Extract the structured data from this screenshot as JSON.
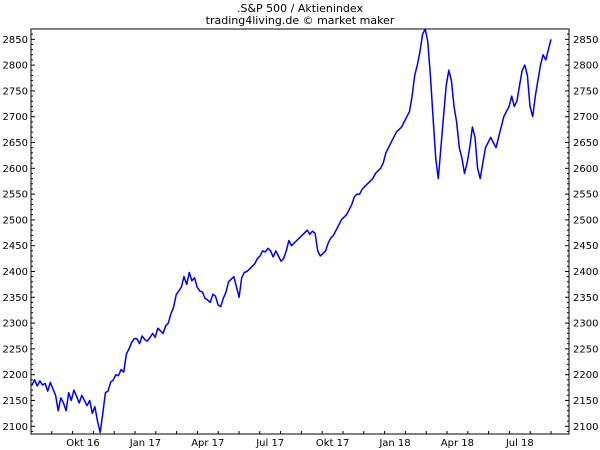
{
  "chart_data": {
    "type": "line",
    "title": ".S&P 500 / Aktienindex",
    "subtitle": "trading4living.de © market maker",
    "xlabel": "",
    "ylabel": "",
    "x_tick_labels": [
      "Okt 16",
      "Jan 17",
      "Apr 17",
      "Jul 17",
      "Okt 17",
      "Jan 18",
      "Apr 18",
      "Jul 18"
    ],
    "ylim": [
      2085,
      2870
    ],
    "y_ticks": [
      2100,
      2150,
      2200,
      2250,
      2300,
      2350,
      2400,
      2450,
      2500,
      2550,
      2600,
      2650,
      2700,
      2750,
      2800,
      2850
    ],
    "grid": false,
    "line_color": "#0000ee",
    "series": [
      {
        "values": [
          2180,
          2190,
          2178,
          2188,
          2180,
          2183,
          2168,
          2185,
          2172,
          2160,
          2130,
          2155,
          2145,
          2130,
          2165,
          2150,
          2170,
          2158,
          2145,
          2160,
          2150,
          2140,
          2150,
          2125,
          2138,
          2110,
          2088,
          2125,
          2165,
          2168,
          2185,
          2190,
          2200,
          2198,
          2210,
          2205,
          2240,
          2250,
          2262,
          2270,
          2270,
          2260,
          2275,
          2268,
          2265,
          2272,
          2280,
          2272,
          2290,
          2285,
          2280,
          2295,
          2300,
          2318,
          2330,
          2355,
          2362,
          2370,
          2390,
          2375,
          2398,
          2382,
          2388,
          2370,
          2362,
          2360,
          2348,
          2345,
          2340,
          2356,
          2352,
          2335,
          2332,
          2348,
          2360,
          2380,
          2385,
          2390,
          2370,
          2350,
          2388,
          2398,
          2400,
          2405,
          2410,
          2415,
          2425,
          2430,
          2440,
          2438,
          2445,
          2440,
          2428,
          2440,
          2430,
          2420,
          2425,
          2440,
          2460,
          2450,
          2455,
          2460,
          2465,
          2470,
          2475,
          2480,
          2472,
          2478,
          2474,
          2440,
          2430,
          2435,
          2440,
          2455,
          2465,
          2470,
          2480,
          2490,
          2500,
          2505,
          2510,
          2520,
          2530,
          2545,
          2550,
          2550,
          2560,
          2565,
          2570,
          2575,
          2580,
          2590,
          2595,
          2600,
          2610,
          2630,
          2640,
          2650,
          2660,
          2670,
          2675,
          2680,
          2690,
          2700,
          2710,
          2740,
          2780,
          2800,
          2825,
          2860,
          2870,
          2845,
          2780,
          2700,
          2620,
          2580,
          2640,
          2700,
          2760,
          2790,
          2770,
          2720,
          2690,
          2640,
          2620,
          2590,
          2610,
          2640,
          2680,
          2660,
          2600,
          2580,
          2610,
          2640,
          2650,
          2660,
          2650,
          2640,
          2660,
          2680,
          2700,
          2710,
          2720,
          2740,
          2720,
          2730,
          2760,
          2790,
          2800,
          2780,
          2720,
          2700,
          2740,
          2770,
          2800,
          2820,
          2810,
          2830,
          2850
        ]
      }
    ]
  }
}
